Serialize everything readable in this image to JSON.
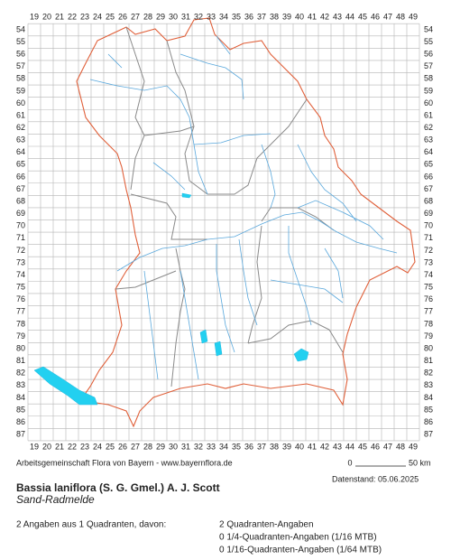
{
  "grid": {
    "columns": [
      19,
      20,
      21,
      22,
      23,
      24,
      25,
      26,
      27,
      28,
      29,
      30,
      31,
      32,
      33,
      34,
      35,
      36,
      37,
      38,
      39,
      40,
      41,
      42,
      43,
      44,
      45,
      46,
      47,
      48,
      49
    ],
    "rows": [
      54,
      55,
      56,
      57,
      58,
      59,
      60,
      61,
      62,
      63,
      64,
      65,
      66,
      67,
      68,
      69,
      70,
      71,
      72,
      73,
      74,
      75,
      76,
      77,
      78,
      79,
      80,
      81,
      82,
      83,
      84,
      85,
      86,
      87
    ]
  },
  "footer": {
    "credit": "Arbeitsgemeinschaft Flora von Bayern - www.bayernflora.de",
    "scale_start": "0",
    "scale_end": "50 km",
    "date": "Datenstand: 05.06.2025"
  },
  "species": {
    "scientific": "Bassia laniflora (S. G. Gmel.) A. J. Scott",
    "common": "Sand-Radmelde"
  },
  "summary": {
    "total": "2 Angaben aus 1 Quadranten, davon:",
    "details": [
      "2 Quadranten-Angaben",
      "0 1/4-Quadranten-Angaben (1/16 MTB)",
      "0 1/16-Quadranten-Angaben (1/64 MTB)"
    ]
  }
}
